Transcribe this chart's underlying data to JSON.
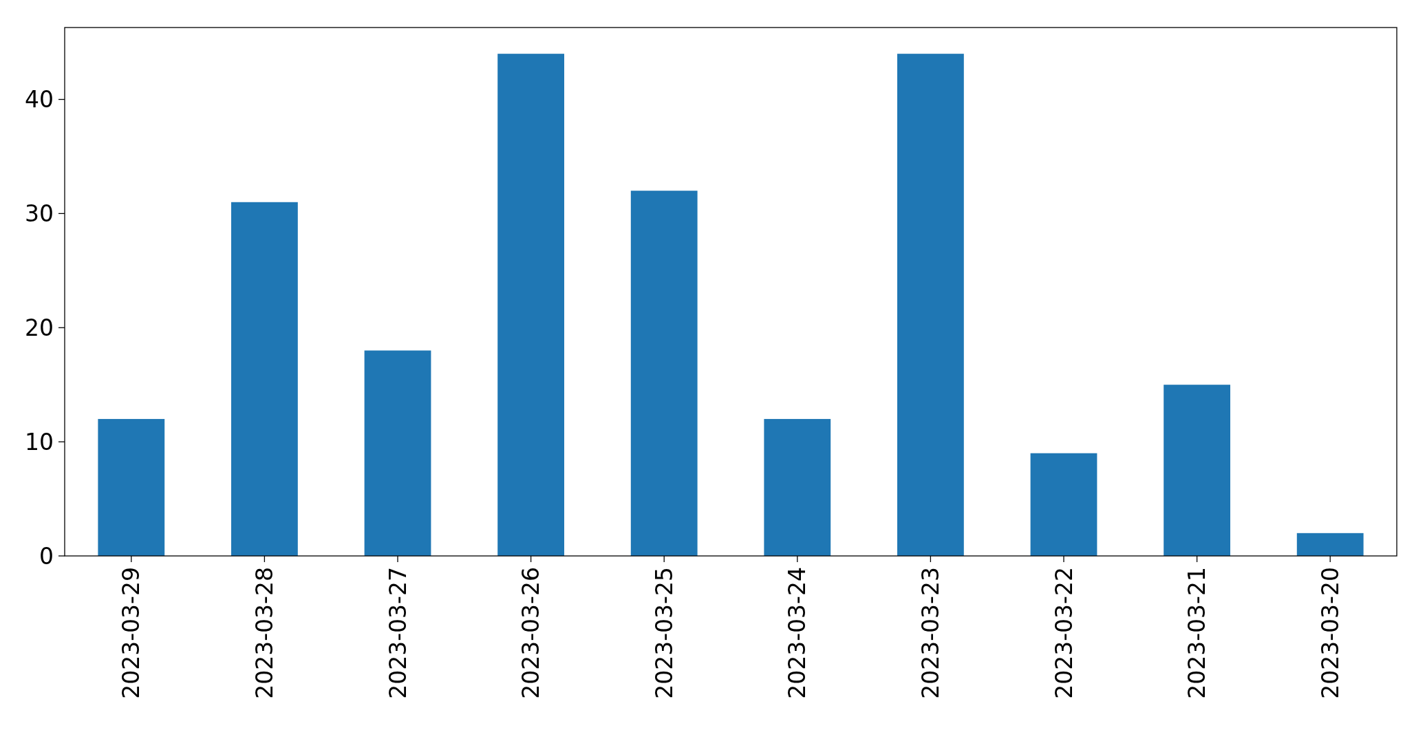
{
  "chart_data": {
    "type": "bar",
    "categories": [
      "2023-03-29",
      "2023-03-28",
      "2023-03-27",
      "2023-03-26",
      "2023-03-25",
      "2023-03-24",
      "2023-03-23",
      "2023-03-22",
      "2023-03-21",
      "2023-03-20"
    ],
    "values": [
      12,
      31,
      18,
      44,
      32,
      12,
      44,
      9,
      15,
      2
    ],
    "color": "#1f77b4",
    "ylim": [
      0,
      46.3
    ],
    "yticks": [
      0,
      10,
      20,
      30,
      40
    ],
    "grid": false
  }
}
